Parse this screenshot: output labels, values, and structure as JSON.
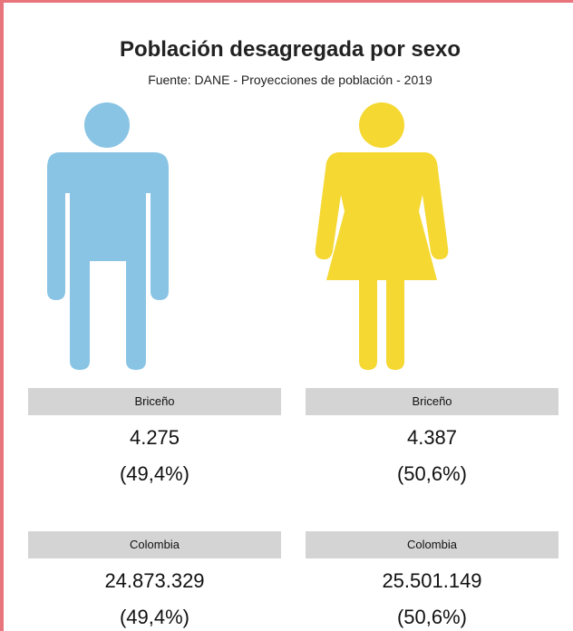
{
  "header": {
    "title": "Población desagregada por sexo",
    "subtitle": "Fuente: DANE - Proyecciones de población - 2019"
  },
  "groups": [
    {
      "left": {
        "name": "Briceño",
        "count": "4.275",
        "share": "(49,4%)"
      },
      "right": {
        "name": "Briceño",
        "count": "4.387",
        "share": "(50,6%)"
      }
    },
    {
      "left": {
        "name": "Colombia",
        "count": "24.873.329",
        "share": "(49,4%)"
      },
      "right": {
        "name": "Colombia",
        "count": "25.501.149",
        "share": "(50,6%)"
      }
    }
  ]
}
